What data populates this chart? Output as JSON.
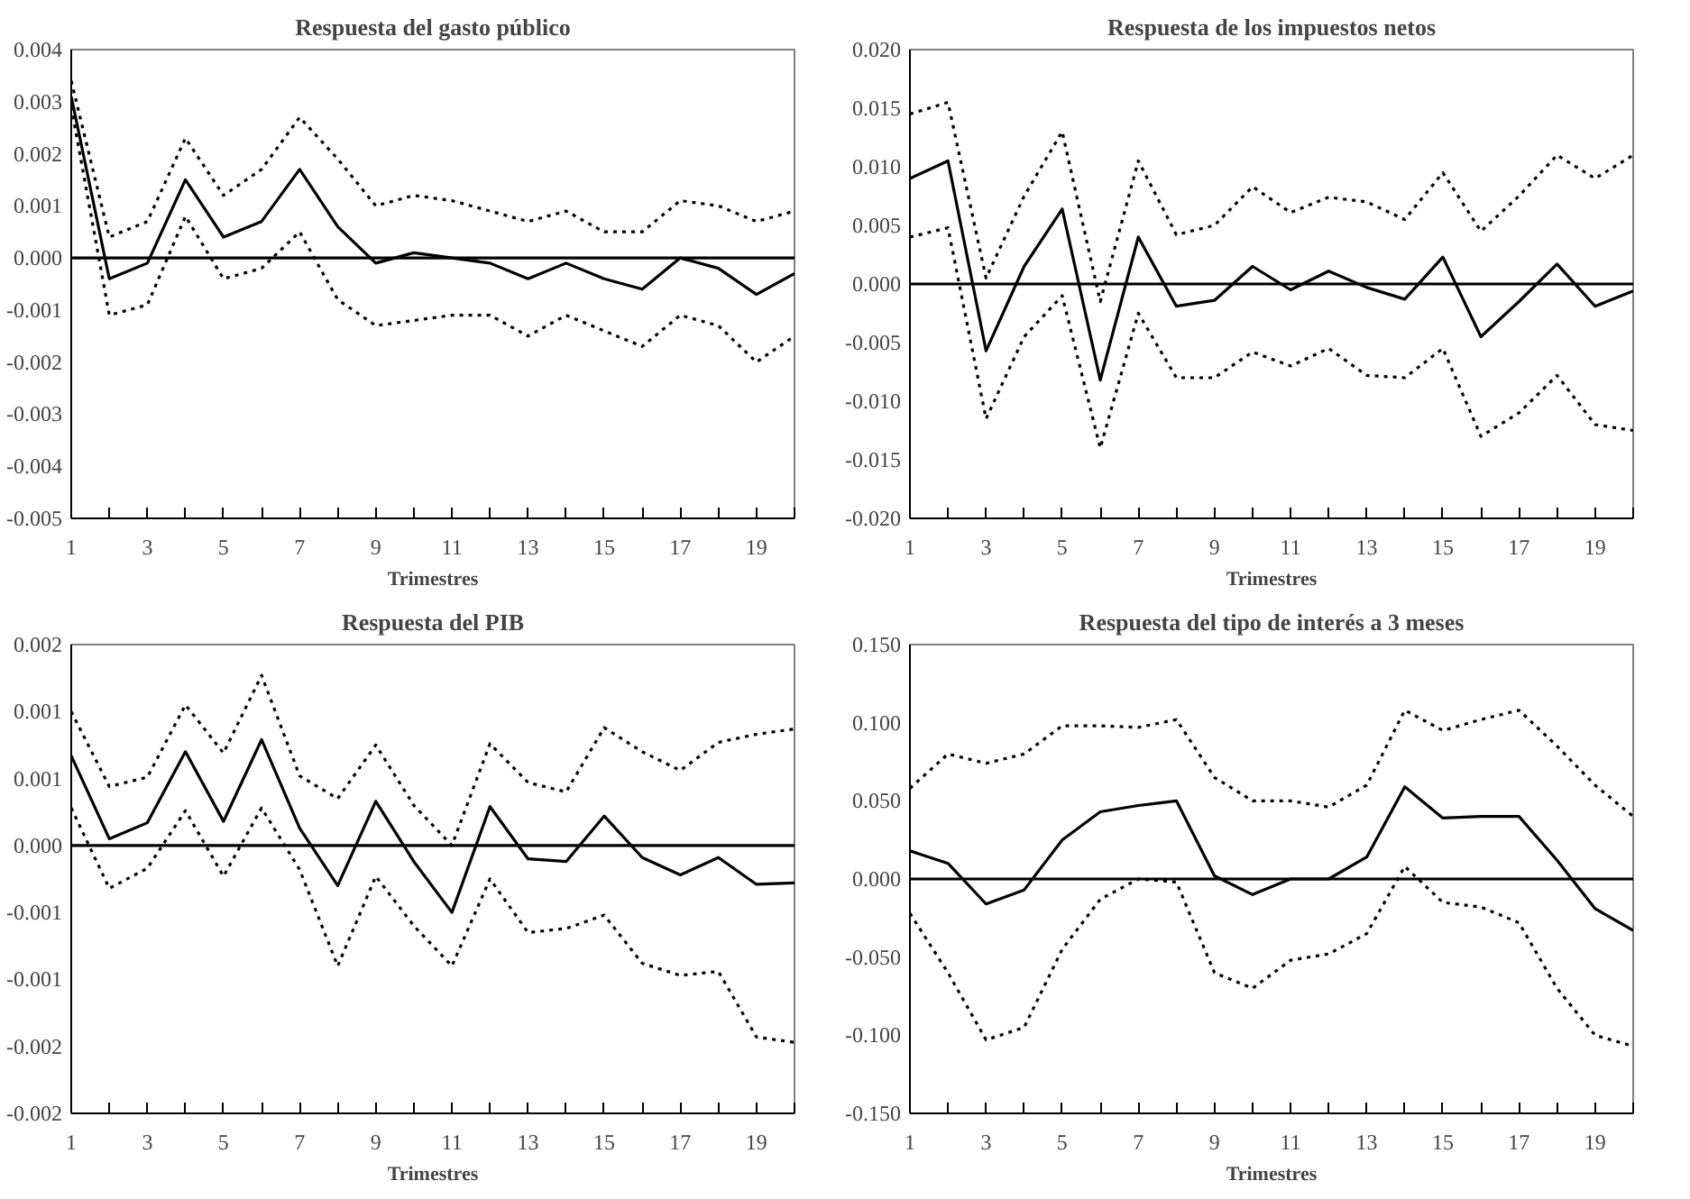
{
  "chart_data": [
    {
      "type": "line",
      "title": "Respuesta del gasto público",
      "xlabel": "Trimestres",
      "x": [
        1,
        2,
        3,
        4,
        5,
        6,
        7,
        8,
        9,
        10,
        11,
        12,
        13,
        14,
        15,
        16,
        17,
        18,
        19,
        20
      ],
      "xlim": [
        1,
        20
      ],
      "xticks": [
        {
          "value": 1,
          "label": "1"
        },
        {
          "value": 2,
          "label": null
        },
        {
          "value": 3,
          "label": "3"
        },
        {
          "value": 4,
          "label": null
        },
        {
          "value": 5,
          "label": "5"
        },
        {
          "value": 6,
          "label": null
        },
        {
          "value": 7,
          "label": "7"
        },
        {
          "value": 8,
          "label": null
        },
        {
          "value": 9,
          "label": "9"
        },
        {
          "value": 10,
          "label": null
        },
        {
          "value": 11,
          "label": "11"
        },
        {
          "value": 12,
          "label": null
        },
        {
          "value": 13,
          "label": "13"
        },
        {
          "value": 14,
          "label": null
        },
        {
          "value": 15,
          "label": "15"
        },
        {
          "value": 16,
          "label": null
        },
        {
          "value": 17,
          "label": "17"
        },
        {
          "value": 18,
          "label": null
        },
        {
          "value": 19,
          "label": "19"
        },
        {
          "value": 20,
          "label": null
        }
      ],
      "ylim": [
        -0.005,
        0.004
      ],
      "yticks": [
        {
          "value": -0.005,
          "label": "-0.005"
        },
        {
          "value": -0.004,
          "label": "-0.004"
        },
        {
          "value": -0.003,
          "label": "-0.003"
        },
        {
          "value": -0.002,
          "label": "-0.002"
        },
        {
          "value": -0.001,
          "label": "-0.001"
        },
        {
          "value": 0,
          "label": "0.000"
        },
        {
          "value": 0.001,
          "label": "0.001"
        },
        {
          "value": 0.002,
          "label": "0.002"
        },
        {
          "value": 0.003,
          "label": "0.003"
        },
        {
          "value": 0.004,
          "label": "0.004"
        }
      ],
      "ref_lines": [
        {
          "axis": "y",
          "value": 0,
          "color": "#000000",
          "line_style": "solid"
        }
      ],
      "series": [
        {
          "color": "#000000",
          "line_style": "solid",
          "values": [
            0.0031,
            -0.0004,
            -0.0001,
            0.0015,
            0.0004,
            0.0007,
            0.0017,
            0.0006,
            -0.0001,
            0.0001,
            0.0,
            -0.0001,
            -0.0004,
            -0.0001,
            -0.0004,
            -0.0006,
            0.0,
            -0.0002,
            -0.0007,
            -0.0003
          ]
        },
        {
          "color": "#000000",
          "line_style": "dotted",
          "values": [
            0.0034,
            0.0004,
            0.0007,
            0.0023,
            0.0012,
            0.0017,
            0.0027,
            0.0019,
            0.001,
            0.0012,
            0.0011,
            0.0009,
            0.0007,
            0.0009,
            0.0005,
            0.0005,
            0.0011,
            0.001,
            0.0007,
            0.0009
          ]
        },
        {
          "color": "#000000",
          "line_style": "dotted",
          "values": [
            0.0029,
            -0.0011,
            -0.0009,
            0.0008,
            -0.0004,
            -0.0002,
            0.0005,
            -0.0008,
            -0.0013,
            -0.0012,
            -0.0011,
            -0.0011,
            -0.0015,
            -0.0011,
            -0.0014,
            -0.0017,
            -0.0011,
            -0.0013,
            -0.002,
            -0.0015
          ]
        }
      ]
    },
    {
      "type": "line",
      "title": "Respuesta de los impuestos netos",
      "xlabel": "Trimestres",
      "x": [
        1,
        2,
        3,
        4,
        5,
        6,
        7,
        8,
        9,
        10,
        11,
        12,
        13,
        14,
        15,
        16,
        17,
        18,
        19,
        20
      ],
      "xlim": [
        1,
        20
      ],
      "xticks": [
        {
          "value": 1,
          "label": "1"
        },
        {
          "value": 2,
          "label": null
        },
        {
          "value": 3,
          "label": "3"
        },
        {
          "value": 4,
          "label": null
        },
        {
          "value": 5,
          "label": "5"
        },
        {
          "value": 6,
          "label": null
        },
        {
          "value": 7,
          "label": "7"
        },
        {
          "value": 8,
          "label": null
        },
        {
          "value": 9,
          "label": "9"
        },
        {
          "value": 10,
          "label": null
        },
        {
          "value": 11,
          "label": "11"
        },
        {
          "value": 12,
          "label": null
        },
        {
          "value": 13,
          "label": "13"
        },
        {
          "value": 14,
          "label": null
        },
        {
          "value": 15,
          "label": "15"
        },
        {
          "value": 16,
          "label": null
        },
        {
          "value": 17,
          "label": "17"
        },
        {
          "value": 18,
          "label": null
        },
        {
          "value": 19,
          "label": "19"
        },
        {
          "value": 20,
          "label": null
        }
      ],
      "ylim": [
        -0.02,
        0.02
      ],
      "yticks": [
        {
          "value": -0.02,
          "label": "-0.020"
        },
        {
          "value": -0.015,
          "label": "-0.015"
        },
        {
          "value": -0.01,
          "label": "-0.010"
        },
        {
          "value": -0.005,
          "label": "-0.005"
        },
        {
          "value": 0,
          "label": "0.000"
        },
        {
          "value": 0.005,
          "label": "0.005"
        },
        {
          "value": 0.01,
          "label": "0.010"
        },
        {
          "value": 0.015,
          "label": "0.015"
        },
        {
          "value": 0.02,
          "label": "0.020"
        }
      ],
      "ref_lines": [
        {
          "axis": "y",
          "value": 0,
          "color": "#000000",
          "line_style": "solid"
        }
      ],
      "series": [
        {
          "color": "#000000",
          "line_style": "solid",
          "values": [
            0.009,
            0.0105,
            -0.0057,
            0.0015,
            0.0064,
            -0.0082,
            0.004,
            -0.0019,
            -0.0014,
            0.0015,
            -0.0005,
            0.0011,
            -0.0003,
            -0.0013,
            0.0023,
            -0.0045,
            -0.0015,
            0.0017,
            -0.0019,
            -0.0006
          ]
        },
        {
          "color": "#000000",
          "line_style": "dotted",
          "values": [
            0.0145,
            0.0155,
            0.0005,
            0.0075,
            0.013,
            -0.0015,
            0.0105,
            0.0042,
            0.005,
            0.0083,
            0.0061,
            0.0074,
            0.007,
            0.0055,
            0.0095,
            0.0045,
            0.0075,
            0.011,
            0.009,
            0.011
          ]
        },
        {
          "color": "#000000",
          "line_style": "dotted",
          "values": [
            0.004,
            0.0048,
            -0.0115,
            -0.0045,
            -0.001,
            -0.014,
            -0.0025,
            -0.008,
            -0.008,
            -0.0058,
            -0.007,
            -0.0055,
            -0.0078,
            -0.008,
            -0.0055,
            -0.013,
            -0.011,
            -0.0078,
            -0.012,
            -0.0125
          ]
        }
      ]
    },
    {
      "type": "line",
      "title": "Respuesta del PIB",
      "xlabel": "Trimestres",
      "x": [
        1,
        2,
        3,
        4,
        5,
        6,
        7,
        8,
        9,
        10,
        11,
        12,
        13,
        14,
        15,
        16,
        17,
        18,
        19,
        20
      ],
      "xlim": [
        1,
        20
      ],
      "xticks": [
        {
          "value": 1,
          "label": "1"
        },
        {
          "value": 2,
          "label": null
        },
        {
          "value": 3,
          "label": "3"
        },
        {
          "value": 4,
          "label": null
        },
        {
          "value": 5,
          "label": "5"
        },
        {
          "value": 6,
          "label": null
        },
        {
          "value": 7,
          "label": "7"
        },
        {
          "value": 8,
          "label": null
        },
        {
          "value": 9,
          "label": "9"
        },
        {
          "value": 10,
          "label": null
        },
        {
          "value": 11,
          "label": "11"
        },
        {
          "value": 12,
          "label": null
        },
        {
          "value": 13,
          "label": "13"
        },
        {
          "value": 14,
          "label": null
        },
        {
          "value": 15,
          "label": "15"
        },
        {
          "value": 16,
          "label": null
        },
        {
          "value": 17,
          "label": "17"
        },
        {
          "value": 18,
          "label": null
        },
        {
          "value": 19,
          "label": "19"
        },
        {
          "value": 20,
          "label": null
        }
      ],
      "ylim": [
        -0.002,
        0.0015
      ],
      "yticks": [
        {
          "value": -0.002,
          "label": "-0.002"
        },
        {
          "value": -0.0015,
          "label": "-0.002"
        },
        {
          "value": -0.001,
          "label": "-0.001"
        },
        {
          "value": -0.0005,
          "label": "-0.001"
        },
        {
          "value": 0,
          "label": "0.000"
        },
        {
          "value": 0.0005,
          "label": "0.001"
        },
        {
          "value": 0.001,
          "label": "0.001"
        },
        {
          "value": 0.0015,
          "label": "0.002"
        }
      ],
      "ref_lines": [
        {
          "axis": "y",
          "value": 0,
          "color": "#000000",
          "line_style": "solid"
        }
      ],
      "series": [
        {
          "color": "#000000",
          "line_style": "solid",
          "values": [
            0.00067,
            5e-05,
            0.00017,
            0.0007,
            0.00018,
            0.00079,
            0.00013,
            -0.0003,
            0.00033,
            -0.00012,
            -0.0005,
            0.00029,
            -0.0001,
            -0.00012,
            0.00022,
            -9e-05,
            -0.00022,
            -9e-05,
            -0.00029,
            -0.00028
          ]
        },
        {
          "color": "#000000",
          "line_style": "dotted",
          "values": [
            0.001,
            0.00044,
            0.00051,
            0.00105,
            0.00069,
            0.00127,
            0.00052,
            0.00035,
            0.00075,
            0.0003,
            0.0,
            0.00076,
            0.00047,
            0.0004,
            0.00088,
            0.0007,
            0.00056,
            0.00077,
            0.00083,
            0.00087
          ]
        },
        {
          "color": "#000000",
          "line_style": "dotted",
          "values": [
            0.00028,
            -0.00032,
            -0.00017,
            0.00026,
            -0.00023,
            0.00028,
            -0.00018,
            -0.0009,
            -0.00023,
            -0.0006,
            -0.0009,
            -0.00025,
            -0.00065,
            -0.00062,
            -0.00052,
            -0.00088,
            -0.00097,
            -0.00094,
            -0.00143,
            -0.00147
          ]
        }
      ]
    },
    {
      "type": "line",
      "title": "Respuesta del tipo de interés a 3 meses",
      "xlabel": "Trimestres",
      "x": [
        1,
        2,
        3,
        4,
        5,
        6,
        7,
        8,
        9,
        10,
        11,
        12,
        13,
        14,
        15,
        16,
        17,
        18,
        19,
        20
      ],
      "xlim": [
        1,
        20
      ],
      "xticks": [
        {
          "value": 1,
          "label": "1"
        },
        {
          "value": 2,
          "label": null
        },
        {
          "value": 3,
          "label": "3"
        },
        {
          "value": 4,
          "label": null
        },
        {
          "value": 5,
          "label": "5"
        },
        {
          "value": 6,
          "label": null
        },
        {
          "value": 7,
          "label": "7"
        },
        {
          "value": 8,
          "label": null
        },
        {
          "value": 9,
          "label": "9"
        },
        {
          "value": 10,
          "label": null
        },
        {
          "value": 11,
          "label": "11"
        },
        {
          "value": 12,
          "label": null
        },
        {
          "value": 13,
          "label": "13"
        },
        {
          "value": 14,
          "label": null
        },
        {
          "value": 15,
          "label": "15"
        },
        {
          "value": 16,
          "label": null
        },
        {
          "value": 17,
          "label": "17"
        },
        {
          "value": 18,
          "label": null
        },
        {
          "value": 19,
          "label": "19"
        },
        {
          "value": 20,
          "label": null
        }
      ],
      "ylim": [
        -0.15,
        0.15
      ],
      "yticks": [
        {
          "value": -0.15,
          "label": "-0.150"
        },
        {
          "value": -0.1,
          "label": "-0.100"
        },
        {
          "value": -0.05,
          "label": "-0.050"
        },
        {
          "value": 0,
          "label": "0.000"
        },
        {
          "value": 0.05,
          "label": "0.050"
        },
        {
          "value": 0.1,
          "label": "0.100"
        },
        {
          "value": 0.15,
          "label": "0.150"
        }
      ],
      "ref_lines": [
        {
          "axis": "y",
          "value": 0,
          "color": "#000000",
          "line_style": "solid"
        }
      ],
      "series": [
        {
          "color": "#000000",
          "line_style": "solid",
          "values": [
            0.018,
            0.01,
            -0.016,
            -0.007,
            0.025,
            0.043,
            0.047,
            0.05,
            0.002,
            -0.01,
            0.0,
            0.0,
            0.014,
            0.059,
            0.039,
            0.04,
            0.04,
            0.012,
            -0.019,
            -0.033
          ]
        },
        {
          "color": "#000000",
          "line_style": "dotted",
          "values": [
            0.058,
            0.08,
            0.074,
            0.08,
            0.098,
            0.098,
            0.097,
            0.102,
            0.065,
            0.05,
            0.05,
            0.046,
            0.06,
            0.108,
            0.095,
            0.102,
            0.108,
            0.085,
            0.06,
            0.04
          ]
        },
        {
          "color": "#000000",
          "line_style": "dotted",
          "values": [
            -0.022,
            -0.06,
            -0.103,
            -0.095,
            -0.045,
            -0.013,
            0.0,
            -0.002,
            -0.06,
            -0.07,
            -0.052,
            -0.048,
            -0.035,
            0.008,
            -0.015,
            -0.018,
            -0.028,
            -0.07,
            -0.1,
            -0.107
          ]
        }
      ]
    }
  ]
}
